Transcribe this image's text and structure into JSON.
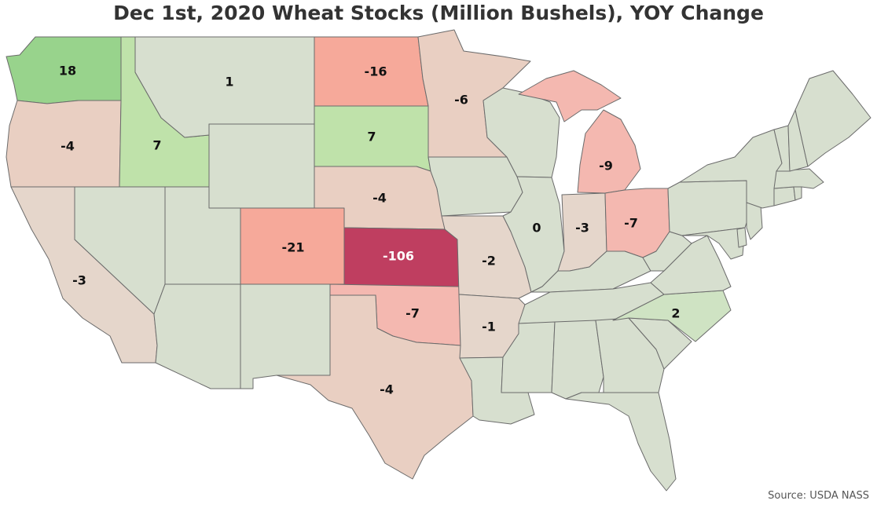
{
  "title": "Dec 1st, 2020 Wheat Stocks (Million Bushels), YOY Change",
  "source": "Source: USDA NASS",
  "colors": {
    "neutral": "#d7dfcf",
    "strong_negative": "#bf3e60",
    "negative_mid": "#f6a99a",
    "negative_light": "#f4b8b0",
    "negative_pale": "#e9cfc2",
    "negative_faint": "#e5d6cb",
    "positive_mid": "#98d38c",
    "positive_light": "#bfe2aa",
    "positive_faint": "#cfe3c3",
    "border": "#6b6b6b"
  },
  "map_data": {
    "metric": "YOY change in Dec 1 wheat stocks",
    "units": "Million Bushels",
    "states": [
      {
        "state": "WA",
        "value": 18
      },
      {
        "state": "OR",
        "value": -4
      },
      {
        "state": "ID",
        "value": 7
      },
      {
        "state": "MT",
        "value": 1
      },
      {
        "state": "ND",
        "value": -16
      },
      {
        "state": "SD",
        "value": 7
      },
      {
        "state": "MN",
        "value": -6
      },
      {
        "state": "NE",
        "value": -4
      },
      {
        "state": "CO",
        "value": -21
      },
      {
        "state": "KS",
        "value": -106
      },
      {
        "state": "OK",
        "value": -7
      },
      {
        "state": "TX",
        "value": -4
      },
      {
        "state": "CA",
        "value": -3
      },
      {
        "state": "MO",
        "value": -2
      },
      {
        "state": "AR",
        "value": -1
      },
      {
        "state": "IL",
        "value": 0
      },
      {
        "state": "IN",
        "value": -3
      },
      {
        "state": "OH",
        "value": -7
      },
      {
        "state": "MI",
        "value": -9
      },
      {
        "state": "NC",
        "value": 2
      }
    ]
  }
}
